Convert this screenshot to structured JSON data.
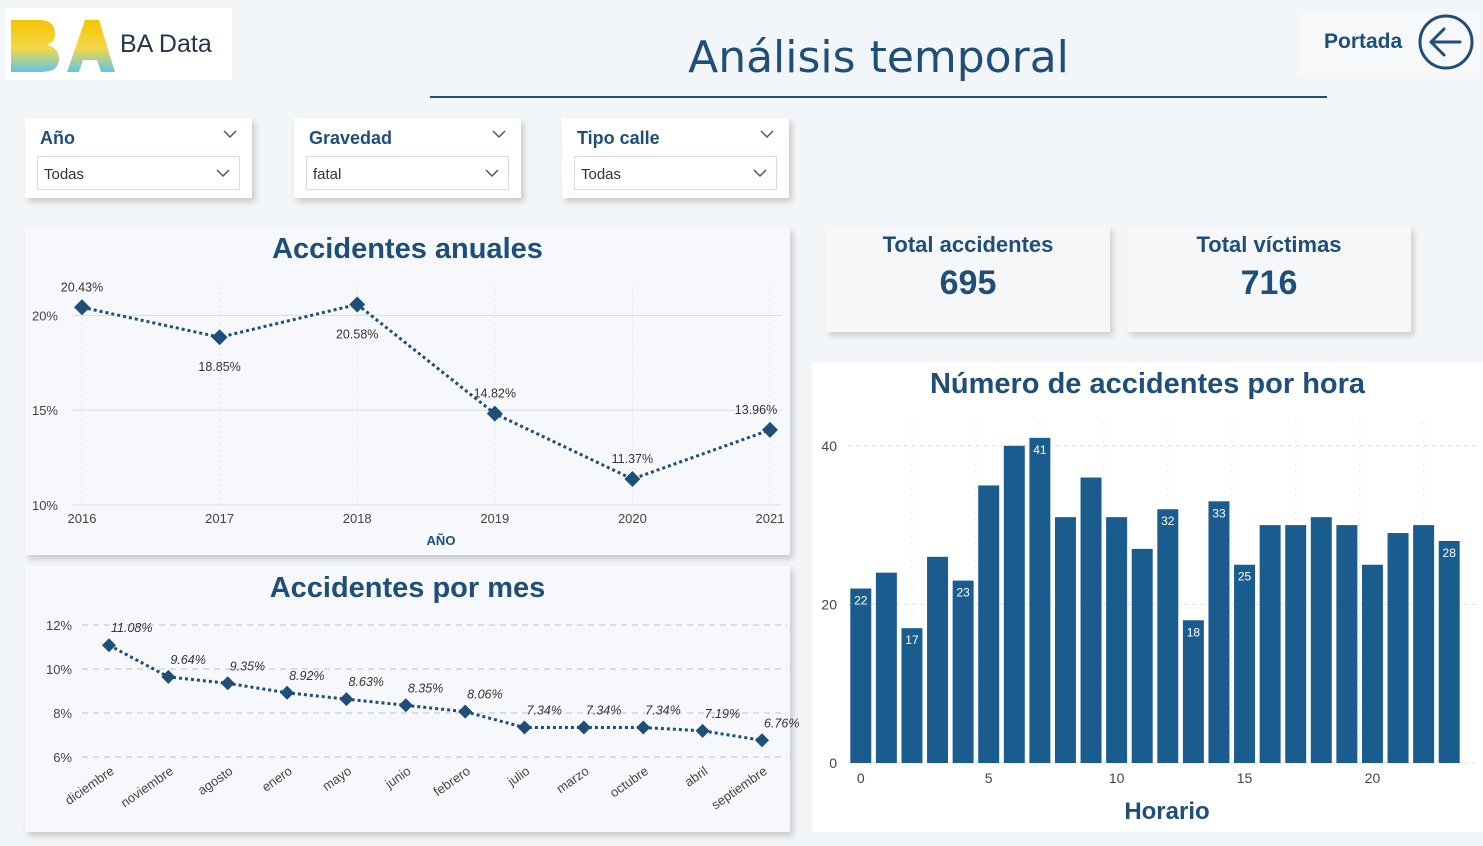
{
  "header": {
    "logo_text": "BA Data",
    "title": "Análisis temporal",
    "back_label": "Portada"
  },
  "filters": [
    {
      "label": "Año",
      "value": "Todas"
    },
    {
      "label": "Gravedad",
      "value": "fatal"
    },
    {
      "label": "Tipo calle",
      "value": "Todas"
    }
  ],
  "kpis": [
    {
      "label": "Total accidentes",
      "value": "695"
    },
    {
      "label": "Total víctimas",
      "value": "716"
    }
  ],
  "colors": {
    "accent": "#1f4e79",
    "bar": "#1b5c8f",
    "line": "#1f4e79"
  },
  "chart_data": [
    {
      "type": "line",
      "title": "Accidentes anuales",
      "xlabel": "AÑO",
      "ylabel": "",
      "categories": [
        "2016",
        "2017",
        "2018",
        "2019",
        "2020",
        "2021"
      ],
      "values": [
        20.43,
        18.85,
        20.58,
        14.82,
        11.37,
        13.96
      ],
      "data_labels": [
        "20.43%",
        "18.85%",
        "20.58%",
        "14.82%",
        "11.37%",
        "13.96%"
      ],
      "yticks": [
        "10%",
        "15%",
        "20%"
      ],
      "ytick_values": [
        10,
        15,
        20
      ],
      "ylim": [
        10,
        21.5
      ]
    },
    {
      "type": "line",
      "title": "Accidentes por mes",
      "xlabel": "",
      "ylabel": "",
      "categories": [
        "diciembre",
        "noviembre",
        "agosto",
        "enero",
        "mayo",
        "junio",
        "febrero",
        "julio",
        "marzo",
        "octubre",
        "abril",
        "septiembre"
      ],
      "values": [
        11.08,
        9.64,
        9.35,
        8.92,
        8.63,
        8.35,
        8.06,
        7.34,
        7.34,
        7.34,
        7.19,
        6.76
      ],
      "data_labels": [
        "11.08%",
        "9.64%",
        "9.35%",
        "8.92%",
        "8.63%",
        "8.35%",
        "8.06%",
        "7.34%",
        "7.34%",
        "7.34%",
        "7.19%",
        "6.76%"
      ],
      "yticks": [
        "6%",
        "8%",
        "10%",
        "12%"
      ],
      "ytick_values": [
        6,
        8,
        10,
        12
      ],
      "ylim": [
        6,
        12
      ]
    },
    {
      "type": "bar",
      "title": "Número de accidentes por hora",
      "xlabel": "Horario",
      "ylabel": "",
      "x": [
        0,
        1,
        2,
        3,
        4,
        5,
        6,
        7,
        8,
        9,
        10,
        11,
        12,
        13,
        14,
        15,
        16,
        17,
        18,
        19,
        20,
        21,
        22,
        23
      ],
      "values": [
        22,
        24,
        17,
        26,
        23,
        35,
        40,
        41,
        31,
        36,
        31,
        27,
        32,
        18,
        33,
        25,
        30,
        30,
        31,
        30,
        25,
        29,
        30,
        28
      ],
      "labeled_values": [
        "22",
        "",
        "17",
        "",
        "23",
        "",
        "",
        "41",
        "",
        "",
        "",
        "",
        "32",
        "18",
        "33",
        "25",
        "",
        "",
        "",
        "",
        "",
        "",
        "",
        "28"
      ],
      "xticks": [
        "0",
        "5",
        "10",
        "15",
        "20"
      ],
      "xtick_values": [
        0,
        5,
        10,
        15,
        20
      ],
      "yticks": [
        "0",
        "20",
        "40"
      ],
      "ytick_values": [
        0,
        20,
        40
      ],
      "ylim": [
        0,
        43
      ]
    }
  ]
}
